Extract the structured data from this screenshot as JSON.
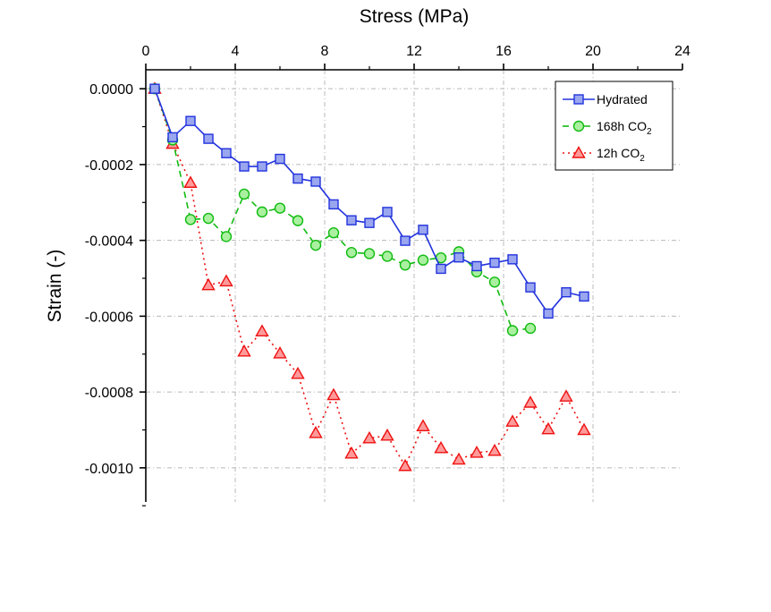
{
  "chart_data": {
    "type": "line",
    "xlabel": "Stress (MPa)",
    "ylabel": "Strain (-)",
    "xlim": [
      0,
      24
    ],
    "ylim": [
      -0.00109,
      5e-05
    ],
    "xticks": [
      0,
      4,
      8,
      12,
      16,
      20,
      24
    ],
    "xtick_labels": [
      "0",
      "4",
      "8",
      "12",
      "16",
      "20",
      "24"
    ],
    "yticks": [
      0.0,
      -0.0002,
      -0.0004,
      -0.0006,
      -0.0008,
      -0.001
    ],
    "ytick_labels": [
      "0.0000",
      "-0.0002",
      "-0.0004",
      "-0.0006",
      "-0.0008",
      "-0.0010"
    ],
    "x_axis_position": "top",
    "grid": true,
    "legend_position": "top-right",
    "series": [
      {
        "name": "Hydrated",
        "name_sub": "",
        "color": "#2233dd",
        "fill": "#9aa6ee",
        "marker": "square",
        "line_style": "solid",
        "x": [
          0.4,
          1.2,
          2.0,
          2.8,
          3.6,
          4.4,
          5.2,
          6.0,
          6.8,
          7.6,
          8.4,
          9.2,
          10.0,
          10.8,
          11.6,
          12.4,
          13.2,
          14.0,
          14.8,
          15.6,
          16.4,
          17.2,
          18.0,
          18.8,
          19.6
        ],
        "y": [
          0.0,
          -0.000128,
          -8.5e-05,
          -0.000132,
          -0.00017,
          -0.000205,
          -0.000205,
          -0.000185,
          -0.000237,
          -0.000245,
          -0.000305,
          -0.000347,
          -0.000354,
          -0.000325,
          -0.000401,
          -0.000372,
          -0.000475,
          -0.000445,
          -0.000468,
          -0.000459,
          -0.00045,
          -0.000524,
          -0.000593,
          -0.000537,
          -0.000548
        ]
      },
      {
        "name": "168h CO",
        "name_sub": "2",
        "color": "#11bb11",
        "fill": "#aaf0a0",
        "marker": "circle",
        "line_style": "dashed",
        "x": [
          0.4,
          1.2,
          2.0,
          2.8,
          3.6,
          4.4,
          5.2,
          6.0,
          6.8,
          7.6,
          8.4,
          9.2,
          10.0,
          10.8,
          11.6,
          12.4,
          13.2,
          14.0,
          14.8,
          15.6,
          16.4,
          17.2
        ],
        "y": [
          0.0,
          -0.000135,
          -0.000345,
          -0.000342,
          -0.00039,
          -0.000278,
          -0.000325,
          -0.000315,
          -0.000348,
          -0.000413,
          -0.00038,
          -0.000432,
          -0.000435,
          -0.000442,
          -0.000465,
          -0.000452,
          -0.000446,
          -0.00043,
          -0.000483,
          -0.00051,
          -0.000638,
          -0.000632
        ]
      },
      {
        "name": "12h CO",
        "name_sub": "2",
        "color": "#ee1111",
        "fill": "#ff9a9a",
        "marker": "triangle",
        "line_style": "dotted",
        "x": [
          0.4,
          1.2,
          2.0,
          2.8,
          3.6,
          4.4,
          5.2,
          6.0,
          6.8,
          7.6,
          8.4,
          9.2,
          10.0,
          10.8,
          11.6,
          12.4,
          13.2,
          14.0,
          14.8,
          15.6,
          16.4,
          17.2,
          18.0,
          18.8,
          19.6
        ],
        "y": [
          0.0,
          -0.000145,
          -0.000248,
          -0.000518,
          -0.000508,
          -0.000693,
          -0.00064,
          -0.000698,
          -0.000752,
          -0.000908,
          -0.000808,
          -0.000962,
          -0.000922,
          -0.000915,
          -0.000995,
          -0.00089,
          -0.000948,
          -0.000978,
          -0.00096,
          -0.000955,
          -0.000878,
          -0.000828,
          -0.000898,
          -0.000812,
          -0.0009
        ]
      }
    ]
  }
}
